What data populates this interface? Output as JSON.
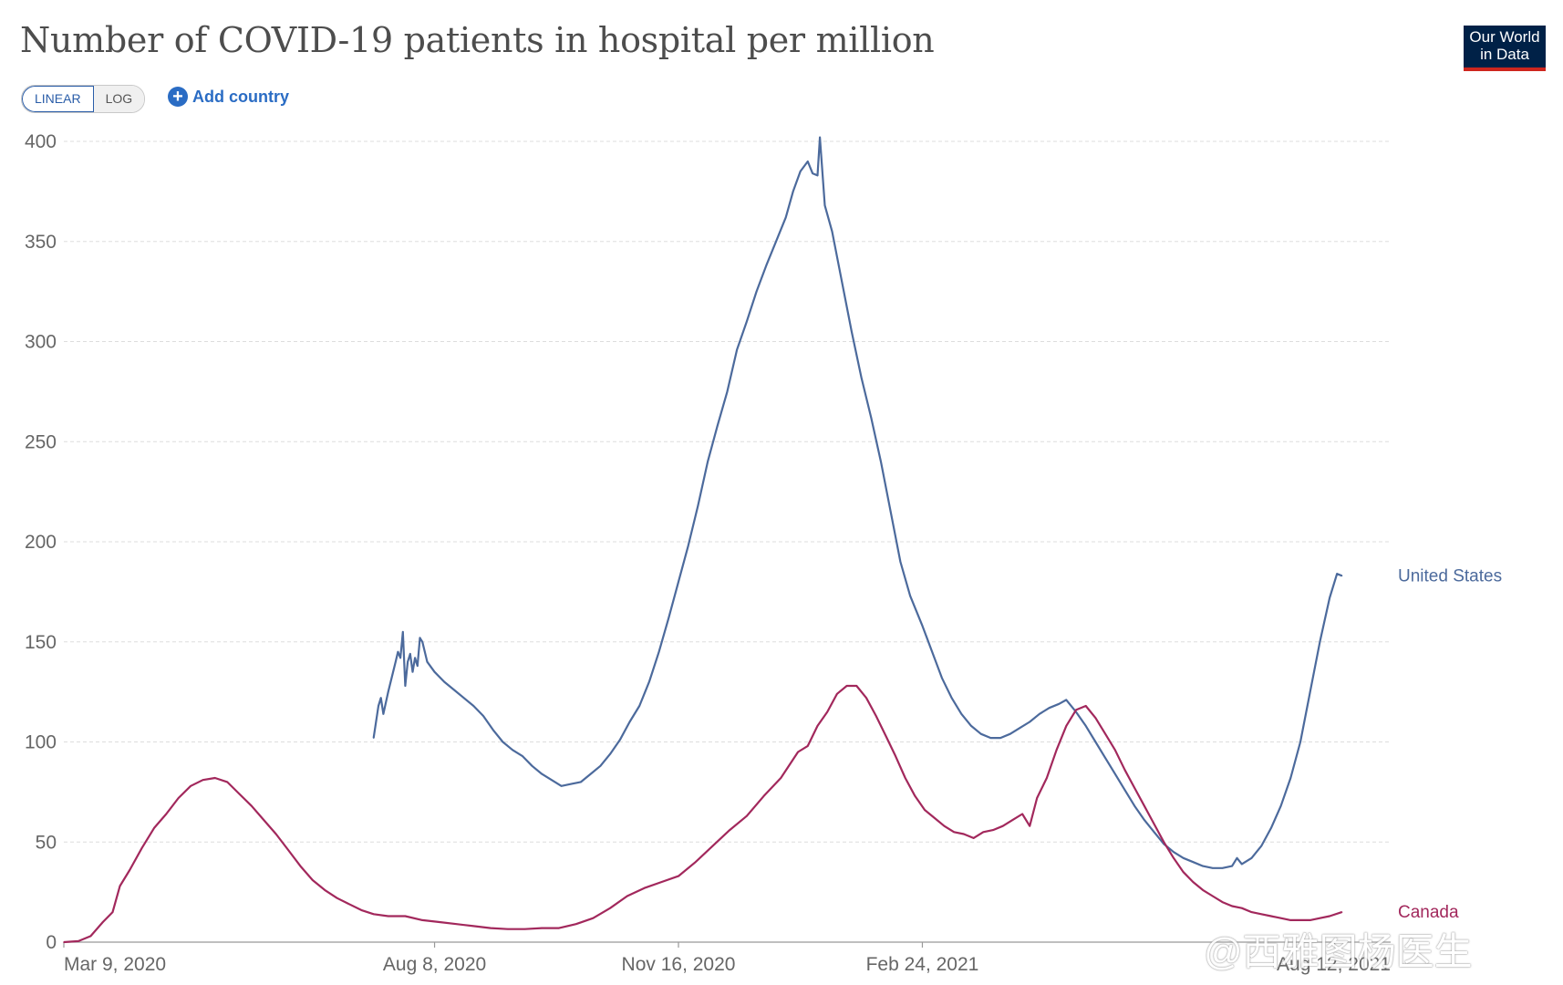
{
  "header": {
    "title": "Number of COVID-19 patients in hospital per million",
    "logo_line1": "Our World",
    "logo_line2": "in Data",
    "scale_linear": "LINEAR",
    "scale_log": "LOG",
    "add_country": "Add country",
    "add_icon": "plus-circle-icon"
  },
  "watermark": "@西雅图杨医生",
  "colors": {
    "us": "#4c6a9c",
    "canada": "#a2285c",
    "grid": "#dddddd",
    "axis": "#999999"
  },
  "chart_data": {
    "type": "line",
    "title": "Number of COVID-19 patients in hospital per million",
    "x_axis_type": "date",
    "xlim": [
      "2020-03-09",
      "2021-09-04"
    ],
    "ylim": [
      0,
      400
    ],
    "yticks": [
      0,
      50,
      100,
      150,
      200,
      250,
      300,
      350,
      400
    ],
    "xticks": [
      {
        "date": "2020-03-09",
        "label": "Mar 9, 2020"
      },
      {
        "date": "2020-08-08",
        "label": "Aug 8, 2020"
      },
      {
        "date": "2020-11-16",
        "label": "Nov 16, 2020"
      },
      {
        "date": "2021-02-24",
        "label": "Feb 24, 2021"
      },
      {
        "date": "2021-08-12",
        "label": "Aug 12, 2021"
      }
    ],
    "grid": "horizontal dashed",
    "series": [
      {
        "name": "United States",
        "color": "#4c6a9c",
        "points": [
          [
            "2020-07-14",
            102
          ],
          [
            "2020-07-16",
            118
          ],
          [
            "2020-07-17",
            122
          ],
          [
            "2020-07-18",
            114
          ],
          [
            "2020-07-20",
            125
          ],
          [
            "2020-07-22",
            135
          ],
          [
            "2020-07-23",
            140
          ],
          [
            "2020-07-24",
            145
          ],
          [
            "2020-07-25",
            142
          ],
          [
            "2020-07-26",
            155
          ],
          [
            "2020-07-27",
            128
          ],
          [
            "2020-07-28",
            140
          ],
          [
            "2020-07-29",
            144
          ],
          [
            "2020-07-30",
            135
          ],
          [
            "2020-07-31",
            142
          ],
          [
            "2020-08-01",
            138
          ],
          [
            "2020-08-02",
            152
          ],
          [
            "2020-08-03",
            150
          ],
          [
            "2020-08-05",
            140
          ],
          [
            "2020-08-08",
            135
          ],
          [
            "2020-08-12",
            130
          ],
          [
            "2020-08-16",
            126
          ],
          [
            "2020-08-20",
            122
          ],
          [
            "2020-08-24",
            118
          ],
          [
            "2020-08-28",
            113
          ],
          [
            "2020-09-01",
            106
          ],
          [
            "2020-09-05",
            100
          ],
          [
            "2020-09-09",
            96
          ],
          [
            "2020-09-13",
            93
          ],
          [
            "2020-09-17",
            88
          ],
          [
            "2020-09-21",
            84
          ],
          [
            "2020-09-25",
            81
          ],
          [
            "2020-09-29",
            78
          ],
          [
            "2020-10-03",
            79
          ],
          [
            "2020-10-07",
            80
          ],
          [
            "2020-10-11",
            84
          ],
          [
            "2020-10-15",
            88
          ],
          [
            "2020-10-19",
            94
          ],
          [
            "2020-10-23",
            101
          ],
          [
            "2020-10-27",
            110
          ],
          [
            "2020-10-31",
            118
          ],
          [
            "2020-11-04",
            130
          ],
          [
            "2020-11-08",
            145
          ],
          [
            "2020-11-12",
            162
          ],
          [
            "2020-11-16",
            180
          ],
          [
            "2020-11-20",
            198
          ],
          [
            "2020-11-24",
            218
          ],
          [
            "2020-11-28",
            240
          ],
          [
            "2020-12-02",
            258
          ],
          [
            "2020-12-06",
            275
          ],
          [
            "2020-12-10",
            296
          ],
          [
            "2020-12-14",
            310
          ],
          [
            "2020-12-18",
            325
          ],
          [
            "2020-12-22",
            338
          ],
          [
            "2020-12-26",
            350
          ],
          [
            "2020-12-30",
            362
          ],
          [
            "2021-01-02",
            375
          ],
          [
            "2021-01-05",
            385
          ],
          [
            "2021-01-08",
            390
          ],
          [
            "2021-01-10",
            384
          ],
          [
            "2021-01-12",
            383
          ],
          [
            "2021-01-13",
            402
          ],
          [
            "2021-01-15",
            368
          ],
          [
            "2021-01-18",
            355
          ],
          [
            "2021-01-22",
            330
          ],
          [
            "2021-01-26",
            305
          ],
          [
            "2021-01-30",
            282
          ],
          [
            "2021-02-03",
            262
          ],
          [
            "2021-02-07",
            240
          ],
          [
            "2021-02-11",
            215
          ],
          [
            "2021-02-15",
            190
          ],
          [
            "2021-02-19",
            173
          ],
          [
            "2021-02-24",
            158
          ],
          [
            "2021-02-28",
            145
          ],
          [
            "2021-03-04",
            132
          ],
          [
            "2021-03-08",
            122
          ],
          [
            "2021-03-12",
            114
          ],
          [
            "2021-03-16",
            108
          ],
          [
            "2021-03-20",
            104
          ],
          [
            "2021-03-24",
            102
          ],
          [
            "2021-03-28",
            102
          ],
          [
            "2021-04-01",
            104
          ],
          [
            "2021-04-05",
            107
          ],
          [
            "2021-04-09",
            110
          ],
          [
            "2021-04-13",
            114
          ],
          [
            "2021-04-17",
            117
          ],
          [
            "2021-04-21",
            119
          ],
          [
            "2021-04-24",
            121
          ],
          [
            "2021-04-28",
            115
          ],
          [
            "2021-05-02",
            108
          ],
          [
            "2021-05-06",
            100
          ],
          [
            "2021-05-10",
            92
          ],
          [
            "2021-05-14",
            84
          ],
          [
            "2021-05-18",
            76
          ],
          [
            "2021-05-22",
            68
          ],
          [
            "2021-05-26",
            61
          ],
          [
            "2021-05-30",
            55
          ],
          [
            "2021-06-03",
            49
          ],
          [
            "2021-06-07",
            45
          ],
          [
            "2021-06-11",
            42
          ],
          [
            "2021-06-15",
            40
          ],
          [
            "2021-06-19",
            38
          ],
          [
            "2021-06-23",
            37
          ],
          [
            "2021-06-27",
            37
          ],
          [
            "2021-07-01",
            38
          ],
          [
            "2021-07-03",
            42
          ],
          [
            "2021-07-05",
            39
          ],
          [
            "2021-07-09",
            42
          ],
          [
            "2021-07-13",
            48
          ],
          [
            "2021-07-17",
            57
          ],
          [
            "2021-07-21",
            68
          ],
          [
            "2021-07-25",
            82
          ],
          [
            "2021-07-29",
            100
          ],
          [
            "2021-08-02",
            125
          ],
          [
            "2021-08-06",
            150
          ],
          [
            "2021-08-10",
            172
          ],
          [
            "2021-08-13",
            184
          ],
          [
            "2021-08-15",
            183
          ]
        ]
      },
      {
        "name": "Canada",
        "color": "#a2285c",
        "points": [
          [
            "2020-03-09",
            0
          ],
          [
            "2020-03-15",
            0.5
          ],
          [
            "2020-03-20",
            3
          ],
          [
            "2020-03-25",
            10
          ],
          [
            "2020-03-29",
            15
          ],
          [
            "2020-04-01",
            28
          ],
          [
            "2020-04-05",
            36
          ],
          [
            "2020-04-10",
            47
          ],
          [
            "2020-04-15",
            57
          ],
          [
            "2020-04-20",
            64
          ],
          [
            "2020-04-25",
            72
          ],
          [
            "2020-04-30",
            78
          ],
          [
            "2020-05-05",
            81
          ],
          [
            "2020-05-10",
            82
          ],
          [
            "2020-05-15",
            80
          ],
          [
            "2020-05-20",
            74
          ],
          [
            "2020-05-25",
            68
          ],
          [
            "2020-05-30",
            61
          ],
          [
            "2020-06-04",
            54
          ],
          [
            "2020-06-09",
            46
          ],
          [
            "2020-06-14",
            38
          ],
          [
            "2020-06-19",
            31
          ],
          [
            "2020-06-24",
            26
          ],
          [
            "2020-06-29",
            22
          ],
          [
            "2020-07-04",
            19
          ],
          [
            "2020-07-09",
            16
          ],
          [
            "2020-07-14",
            14
          ],
          [
            "2020-07-20",
            13
          ],
          [
            "2020-07-27",
            13
          ],
          [
            "2020-08-03",
            11
          ],
          [
            "2020-08-10",
            10
          ],
          [
            "2020-08-17",
            9
          ],
          [
            "2020-08-24",
            8
          ],
          [
            "2020-08-31",
            7
          ],
          [
            "2020-09-07",
            6.5
          ],
          [
            "2020-09-14",
            6.5
          ],
          [
            "2020-09-21",
            7
          ],
          [
            "2020-09-28",
            7
          ],
          [
            "2020-10-05",
            9
          ],
          [
            "2020-10-12",
            12
          ],
          [
            "2020-10-19",
            17
          ],
          [
            "2020-10-26",
            23
          ],
          [
            "2020-11-02",
            27
          ],
          [
            "2020-11-09",
            30
          ],
          [
            "2020-11-16",
            33
          ],
          [
            "2020-11-23",
            40
          ],
          [
            "2020-11-30",
            48
          ],
          [
            "2020-12-07",
            56
          ],
          [
            "2020-12-14",
            63
          ],
          [
            "2020-12-21",
            73
          ],
          [
            "2020-12-28",
            82
          ],
          [
            "2021-01-04",
            95
          ],
          [
            "2021-01-08",
            98
          ],
          [
            "2021-01-12",
            108
          ],
          [
            "2021-01-16",
            115
          ],
          [
            "2021-01-20",
            124
          ],
          [
            "2021-01-24",
            128
          ],
          [
            "2021-01-28",
            128
          ],
          [
            "2021-02-01",
            122
          ],
          [
            "2021-02-05",
            113
          ],
          [
            "2021-02-09",
            103
          ],
          [
            "2021-02-13",
            93
          ],
          [
            "2021-02-17",
            82
          ],
          [
            "2021-02-21",
            73
          ],
          [
            "2021-02-25",
            66
          ],
          [
            "2021-03-01",
            62
          ],
          [
            "2021-03-05",
            58
          ],
          [
            "2021-03-09",
            55
          ],
          [
            "2021-03-13",
            54
          ],
          [
            "2021-03-17",
            52
          ],
          [
            "2021-03-21",
            55
          ],
          [
            "2021-03-25",
            56
          ],
          [
            "2021-03-29",
            58
          ],
          [
            "2021-04-02",
            61
          ],
          [
            "2021-04-06",
            64
          ],
          [
            "2021-04-09",
            58
          ],
          [
            "2021-04-12",
            72
          ],
          [
            "2021-04-16",
            82
          ],
          [
            "2021-04-20",
            96
          ],
          [
            "2021-04-24",
            108
          ],
          [
            "2021-04-28",
            116
          ],
          [
            "2021-05-02",
            118
          ],
          [
            "2021-05-06",
            112
          ],
          [
            "2021-05-10",
            104
          ],
          [
            "2021-05-14",
            96
          ],
          [
            "2021-05-18",
            86
          ],
          [
            "2021-05-22",
            77
          ],
          [
            "2021-05-26",
            68
          ],
          [
            "2021-05-30",
            59
          ],
          [
            "2021-06-03",
            50
          ],
          [
            "2021-06-07",
            42
          ],
          [
            "2021-06-11",
            35
          ],
          [
            "2021-06-15",
            30
          ],
          [
            "2021-06-19",
            26
          ],
          [
            "2021-06-23",
            23
          ],
          [
            "2021-06-27",
            20
          ],
          [
            "2021-07-01",
            18
          ],
          [
            "2021-07-05",
            17
          ],
          [
            "2021-07-09",
            15
          ],
          [
            "2021-07-13",
            14
          ],
          [
            "2021-07-17",
            13
          ],
          [
            "2021-07-21",
            12
          ],
          [
            "2021-07-25",
            11
          ],
          [
            "2021-07-29",
            11
          ],
          [
            "2021-08-02",
            11
          ],
          [
            "2021-08-06",
            12
          ],
          [
            "2021-08-10",
            13
          ],
          [
            "2021-08-15",
            15
          ]
        ]
      }
    ]
  }
}
